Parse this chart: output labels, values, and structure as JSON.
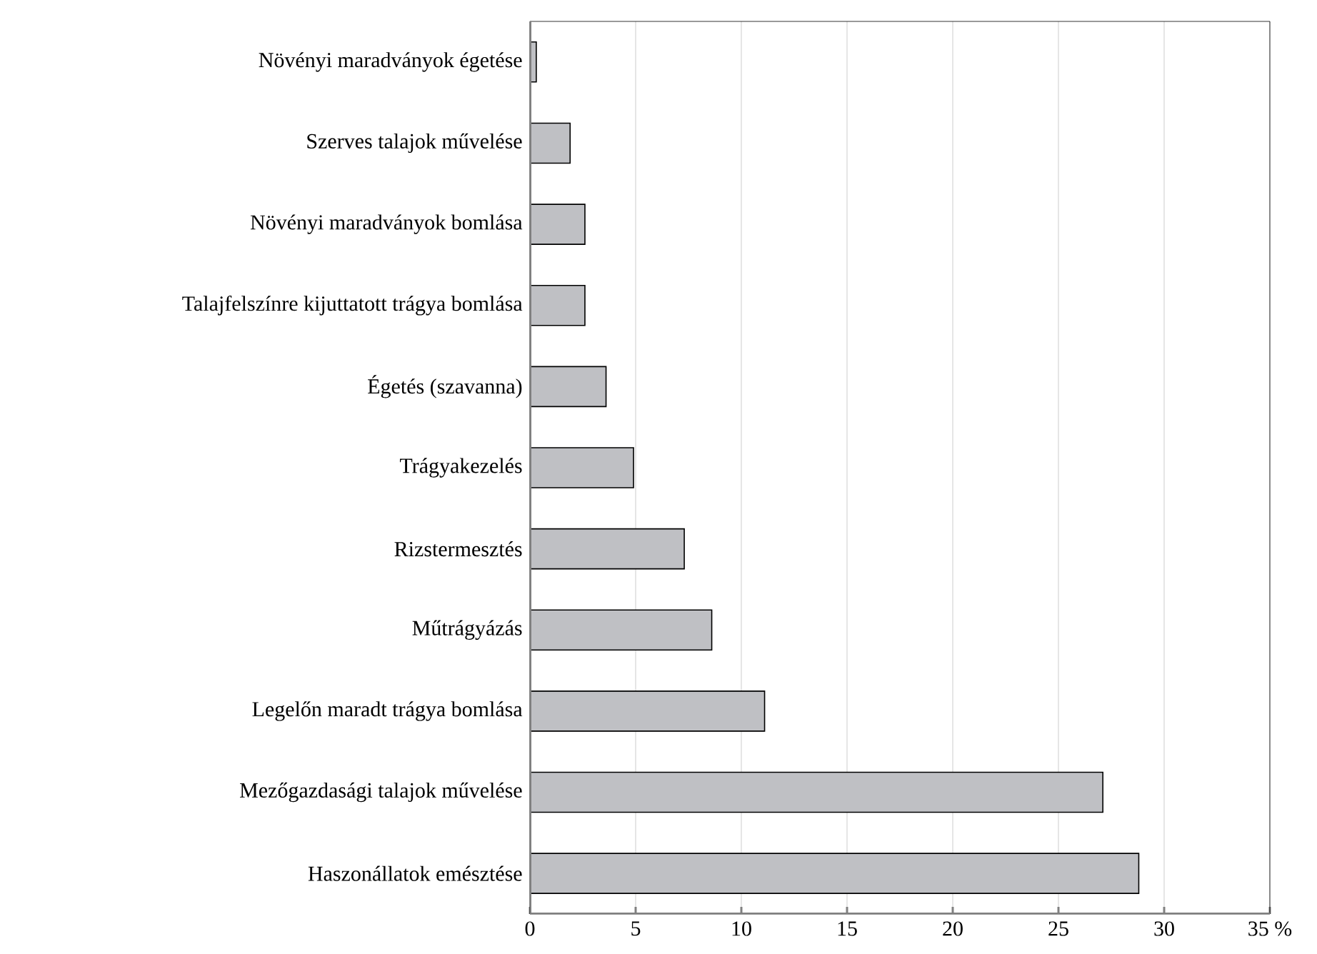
{
  "chart_data": {
    "type": "bar",
    "orientation": "horizontal",
    "categories": [
      "Növényi maradványok égetése",
      "Szerves talajok művelése",
      "Növényi maradványok bomlása",
      "Talajfelszínre kijuttatott trágya bomlása",
      "Égetés (szavanna)",
      "Trágyakezelés",
      "Rizstermesztés",
      "Műtrágyázás",
      "Legelőn maradt trágya bomlása",
      "Mezőgazdasági talajok művelése",
      "Haszonállatok emésztése"
    ],
    "values": [
      0.3,
      1.9,
      2.6,
      2.6,
      3.6,
      4.9,
      7.3,
      8.6,
      11.1,
      27.1,
      28.8
    ],
    "color": "#bfc0c4",
    "xlim": [
      0,
      35
    ],
    "xticks": [
      0,
      5,
      10,
      15,
      20,
      25,
      30,
      {
        "value": 35,
        "label": "35 %"
      }
    ],
    "grid": "x"
  }
}
